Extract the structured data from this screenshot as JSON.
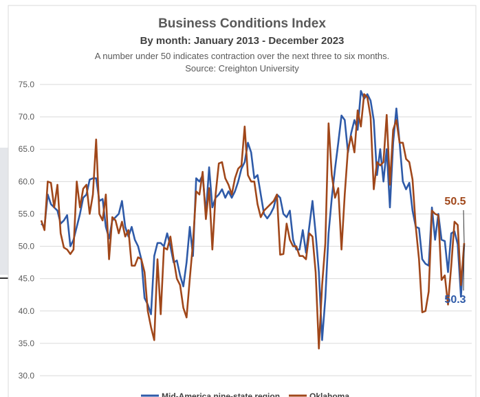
{
  "chart_data": {
    "type": "line",
    "title": "Business Conditions Index",
    "subtitle": "By month: January 2013 - December 2023",
    "note": "A number under 50 indicates contraction over the next three to six months.",
    "source": "Source: Creighton University",
    "annotations": [
      "50.5",
      "50.3"
    ],
    "categories": [
      null,
      null,
      null,
      null,
      null,
      null,
      null,
      null,
      null,
      null,
      null,
      null,
      null,
      null,
      null,
      null,
      null,
      null,
      null,
      null,
      null,
      null,
      null,
      null,
      null,
      null,
      null,
      null,
      null,
      null,
      null,
      null,
      null,
      null,
      null,
      null,
      null,
      null,
      null,
      null,
      null,
      null,
      null,
      null,
      null,
      null,
      null,
      null,
      null,
      null,
      null,
      null,
      null,
      null,
      null,
      null,
      null,
      null,
      null,
      null,
      null,
      null,
      null,
      null,
      null,
      null,
      null,
      null,
      null,
      null,
      null,
      null,
      null,
      null,
      null,
      null,
      null,
      null,
      null,
      null,
      null,
      null,
      null,
      null,
      null,
      null,
      null,
      null,
      null,
      null,
      null,
      null,
      null,
      null,
      null,
      null,
      null,
      null,
      null,
      null,
      null,
      null,
      null,
      null,
      null,
      null,
      null,
      null,
      null,
      null,
      null,
      null,
      null,
      null,
      null,
      null,
      null,
      null,
      null,
      null,
      null,
      null,
      null,
      null,
      null,
      null,
      null,
      null,
      null,
      null,
      null,
      null
    ],
    "series": [
      {
        "name": "Mid-America nine-state region",
        "color": "#2e5aa8",
        "values": [
          53.5,
          53,
          58,
          56.5,
          56,
          55.5,
          53.5,
          54,
          54.8,
          50,
          51,
          53,
          55,
          57.5,
          58,
          60.3,
          60.5,
          60.5,
          57,
          57.3,
          53,
          51.2,
          54,
          54.5,
          55,
          57,
          53,
          51.5,
          53,
          51,
          50,
          48,
          42,
          41,
          39.5,
          48.5,
          50.5,
          50.5,
          50,
          52,
          50,
          47.5,
          47.8,
          45.5,
          43.8,
          47.5,
          53,
          48.5,
          60.5,
          60,
          61,
          55,
          62.2,
          56,
          57.5,
          58,
          58.8,
          57.5,
          58.5,
          57.5,
          58.5,
          60,
          62,
          63,
          66,
          64.5,
          60.5,
          61,
          58,
          55,
          54.3,
          55,
          56,
          58,
          57.5,
          55,
          54.5,
          55.5,
          51,
          49.5,
          49.5,
          52.5,
          49,
          53,
          57,
          52,
          46,
          35.5,
          42,
          52,
          57.5,
          62,
          66,
          70.2,
          69.5,
          64.5,
          67.5,
          69.5,
          68,
          74,
          72.8,
          73.5,
          72.5,
          69.5,
          61,
          65,
          60,
          65,
          56,
          66,
          71.3,
          66,
          60,
          58.8,
          59.8,
          55.5,
          53,
          52.8,
          48,
          47.3,
          47,
          56,
          51,
          55,
          51,
          50.8,
          46,
          52,
          52.3,
          50.3,
          42.2,
          50.3
        ]
      },
      {
        "name": "Oklahoma",
        "color": "#a0471a",
        "values": [
          54,
          52.5,
          60,
          59.8,
          56,
          59.5,
          52,
          49.8,
          49.5,
          48.8,
          49.5,
          60,
          56,
          58.9,
          59.5,
          55,
          58,
          66.5,
          55,
          54,
          58,
          48,
          54.5,
          54,
          52,
          53.8,
          51.5,
          52.5,
          47,
          47,
          48.3,
          48,
          46,
          40,
          37.5,
          35.5,
          48,
          39.5,
          49.8,
          49.5,
          51.5,
          48,
          45,
          44,
          40.5,
          39,
          45,
          50.5,
          58.5,
          58,
          61.5,
          54.2,
          59,
          49.5,
          58,
          62.8,
          63,
          60.5,
          59.5,
          58,
          60.5,
          62,
          62.5,
          68.5,
          61,
          60,
          60,
          56.5,
          54.5,
          55.5,
          56,
          56.5,
          57,
          58,
          48.7,
          48.8,
          53.5,
          51,
          50,
          50,
          48.5,
          48.5,
          48,
          52,
          51.5,
          46,
          34.2,
          44,
          50.5,
          69,
          61,
          57.5,
          59,
          49.5,
          58,
          65,
          67,
          64.5,
          71,
          68.5,
          73.5,
          73,
          70,
          58.8,
          63,
          62.5,
          63,
          70.3,
          59.5,
          68,
          69.5,
          66,
          66,
          63.5,
          63,
          60.3,
          53,
          48,
          39.8,
          40,
          43,
          55.5,
          55,
          54.8,
          44.8,
          45.5,
          41,
          47,
          53.8,
          53.3,
          44,
          50.5
        ]
      }
    ],
    "ylim": [
      30,
      75
    ],
    "yticks": [
      {
        "value": 30,
        "label": "30.0"
      },
      {
        "value": 35,
        "label": "35.0"
      },
      {
        "value": 40,
        "label": "40.0"
      },
      {
        "value": 45,
        "label": "45.0"
      },
      {
        "value": 50,
        "label": "50.0"
      },
      {
        "value": 55,
        "label": "55.0"
      },
      {
        "value": 60,
        "label": "60.0"
      },
      {
        "value": 65,
        "label": "65.0"
      },
      {
        "value": 70,
        "label": "70.0"
      },
      {
        "value": 75,
        "label": "75.0"
      }
    ],
    "grid": true,
    "legend": "bottom"
  }
}
